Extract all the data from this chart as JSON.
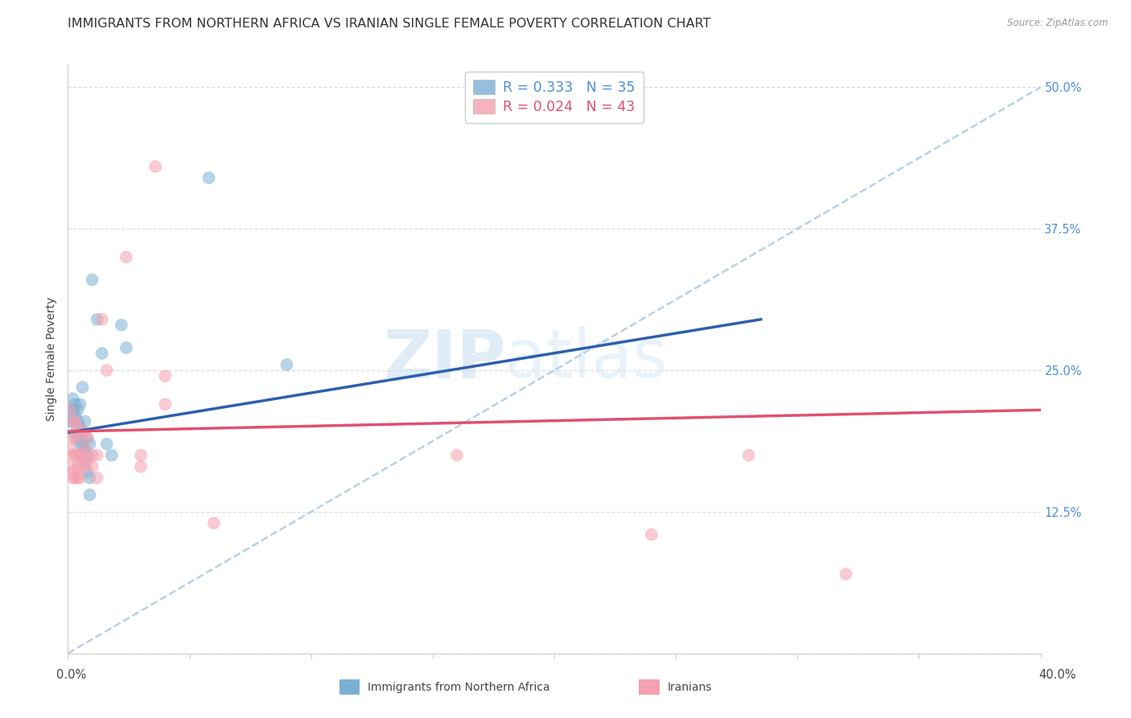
{
  "title": "IMMIGRANTS FROM NORTHERN AFRICA VS IRANIAN SINGLE FEMALE POVERTY CORRELATION CHART",
  "source": "Source: ZipAtlas.com",
  "ylabel": "Single Female Poverty",
  "yticks": [
    0.0,
    0.125,
    0.25,
    0.375,
    0.5
  ],
  "ytick_labels": [
    "",
    "12.5%",
    "25.0%",
    "37.5%",
    "50.0%"
  ],
  "xlim": [
    0.0,
    0.4
  ],
  "ylim": [
    0.0,
    0.52
  ],
  "watermark_part1": "ZIP",
  "watermark_part2": "atlas",
  "legend_label1": "R = 0.333   N = 35",
  "legend_label2": "R = 0.024   N = 43",
  "blue_color": "#7bafd4",
  "pink_color": "#f4a0b0",
  "blue_line_color": "#2b5fad",
  "pink_line_color": "#e05070",
  "diag_color": "#b8d0e8",
  "background_color": "#ffffff",
  "grid_color": "#dddddd",
  "right_tick_color": "#4a90d9",
  "title_fontsize": 11.5,
  "label_fontsize": 10,
  "tick_fontsize": 10.5,
  "dot_size": 130,
  "dot_alpha": 0.55,
  "blue_dots": [
    [
      0.001,
      0.215
    ],
    [
      0.001,
      0.205
    ],
    [
      0.002,
      0.225
    ],
    [
      0.002,
      0.215
    ],
    [
      0.002,
      0.205
    ],
    [
      0.003,
      0.22
    ],
    [
      0.003,
      0.21
    ],
    [
      0.003,
      0.195
    ],
    [
      0.004,
      0.215
    ],
    [
      0.004,
      0.205
    ],
    [
      0.004,
      0.19
    ],
    [
      0.005,
      0.22
    ],
    [
      0.005,
      0.2
    ],
    [
      0.005,
      0.185
    ],
    [
      0.006,
      0.235
    ],
    [
      0.006,
      0.195
    ],
    [
      0.006,
      0.185
    ],
    [
      0.007,
      0.205
    ],
    [
      0.007,
      0.18
    ],
    [
      0.007,
      0.17
    ],
    [
      0.008,
      0.19
    ],
    [
      0.008,
      0.175
    ],
    [
      0.008,
      0.16
    ],
    [
      0.009,
      0.185
    ],
    [
      0.009,
      0.155
    ],
    [
      0.009,
      0.14
    ],
    [
      0.01,
      0.33
    ],
    [
      0.012,
      0.295
    ],
    [
      0.014,
      0.265
    ],
    [
      0.016,
      0.185
    ],
    [
      0.018,
      0.175
    ],
    [
      0.022,
      0.29
    ],
    [
      0.024,
      0.27
    ],
    [
      0.058,
      0.42
    ],
    [
      0.09,
      0.255
    ]
  ],
  "pink_dots": [
    [
      0.001,
      0.215
    ],
    [
      0.001,
      0.18
    ],
    [
      0.001,
      0.165
    ],
    [
      0.002,
      0.205
    ],
    [
      0.002,
      0.19
    ],
    [
      0.002,
      0.175
    ],
    [
      0.002,
      0.16
    ],
    [
      0.002,
      0.155
    ],
    [
      0.003,
      0.205
    ],
    [
      0.003,
      0.19
    ],
    [
      0.003,
      0.175
    ],
    [
      0.003,
      0.155
    ],
    [
      0.004,
      0.2
    ],
    [
      0.004,
      0.175
    ],
    [
      0.004,
      0.165
    ],
    [
      0.004,
      0.155
    ],
    [
      0.005,
      0.175
    ],
    [
      0.005,
      0.165
    ],
    [
      0.005,
      0.155
    ],
    [
      0.006,
      0.195
    ],
    [
      0.006,
      0.175
    ],
    [
      0.007,
      0.195
    ],
    [
      0.007,
      0.18
    ],
    [
      0.007,
      0.165
    ],
    [
      0.008,
      0.19
    ],
    [
      0.008,
      0.17
    ],
    [
      0.01,
      0.175
    ],
    [
      0.01,
      0.165
    ],
    [
      0.012,
      0.175
    ],
    [
      0.012,
      0.155
    ],
    [
      0.014,
      0.295
    ],
    [
      0.016,
      0.25
    ],
    [
      0.024,
      0.35
    ],
    [
      0.03,
      0.175
    ],
    [
      0.03,
      0.165
    ],
    [
      0.036,
      0.43
    ],
    [
      0.04,
      0.245
    ],
    [
      0.04,
      0.22
    ],
    [
      0.06,
      0.115
    ],
    [
      0.16,
      0.175
    ],
    [
      0.24,
      0.105
    ],
    [
      0.28,
      0.175
    ],
    [
      0.32,
      0.07
    ]
  ],
  "blue_line": {
    "x0": 0.0,
    "y0": 0.195,
    "x1": 0.285,
    "y1": 0.295
  },
  "pink_line": {
    "x0": 0.0,
    "y0": 0.196,
    "x1": 0.4,
    "y1": 0.215
  },
  "diag_line": {
    "x0": 0.0,
    "y0": 0.0,
    "x1": 0.4,
    "y1": 0.5
  }
}
